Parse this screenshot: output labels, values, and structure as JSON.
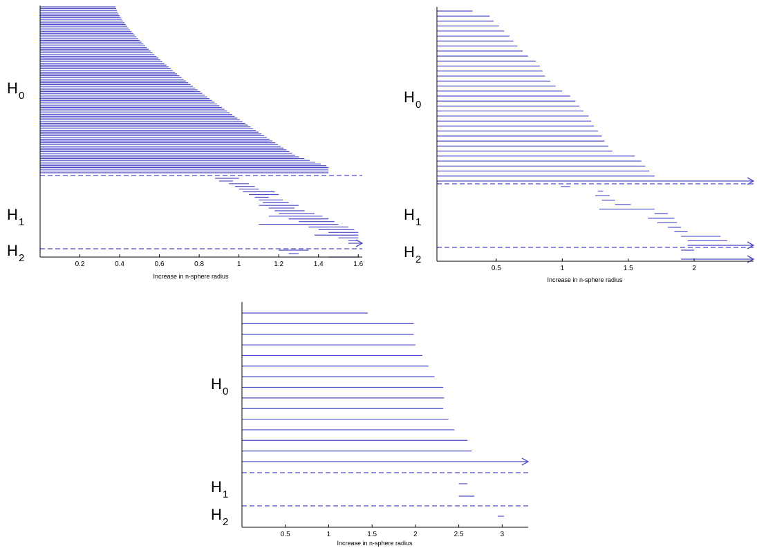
{
  "chart_data": [
    {
      "type": "barcode",
      "xlabel": "Increase in n-sphere radius",
      "xlim": [
        0,
        1.62
      ],
      "xticks": [
        "0.2",
        "0.4",
        "0.6",
        "0.8",
        "1",
        "1.2",
        "1.4",
        "1.6"
      ],
      "xtick_values": [
        0.2,
        0.4,
        0.6,
        0.8,
        1,
        1.2,
        1.4,
        1.6
      ],
      "groups": [
        {
          "label": "H",
          "sub": "0",
          "bars_generate": {
            "count": 95,
            "profile": "dense"
          }
        },
        {
          "label": "H",
          "sub": "1",
          "bars": [
            [
              0.88,
              1.0
            ],
            [
              0.9,
              0.97
            ],
            [
              0.95,
              1.05
            ],
            [
              0.98,
              1.08
            ],
            [
              1.0,
              1.1
            ],
            [
              1.02,
              1.18
            ],
            [
              1.05,
              1.2
            ],
            [
              1.08,
              1.15
            ],
            [
              1.1,
              1.22
            ],
            [
              1.12,
              1.25
            ],
            [
              1.1,
              1.3
            ],
            [
              1.15,
              1.28
            ],
            [
              1.18,
              1.33
            ],
            [
              1.2,
              1.38
            ],
            [
              1.15,
              1.42
            ],
            [
              1.25,
              1.45
            ],
            [
              1.3,
              1.48
            ],
            [
              1.1,
              1.5
            ],
            [
              1.35,
              1.55
            ],
            [
              1.4,
              1.58
            ],
            [
              1.45,
              1.6
            ],
            [
              1.38,
              1.6
            ],
            [
              1.5,
              1.6
            ],
            [
              1.55,
              1.6
            ]
          ],
          "infinite_count": 1
        },
        {
          "label": "H",
          "sub": "2",
          "bars": [
            [
              1.2,
              1.35
            ],
            [
              1.25,
              1.3
            ],
            [
              1.45,
              1.6
            ]
          ]
        }
      ]
    },
    {
      "type": "barcode",
      "xlabel": "Increase in n-sphere radius",
      "xlim": [
        0.05,
        2.45
      ],
      "xticks": [
        "0.5",
        "1",
        "1.5",
        "2"
      ],
      "xtick_values": [
        0.5,
        1,
        1.5,
        2
      ],
      "groups": [
        {
          "label": "H",
          "sub": "0",
          "bars": [
            [
              0.05,
              0.32
            ],
            [
              0.05,
              0.45
            ],
            [
              0.05,
              0.48
            ],
            [
              0.05,
              0.52
            ],
            [
              0.05,
              0.56
            ],
            [
              0.05,
              0.6
            ],
            [
              0.05,
              0.63
            ],
            [
              0.05,
              0.66
            ],
            [
              0.05,
              0.7
            ],
            [
              0.05,
              0.74
            ],
            [
              0.05,
              0.8
            ],
            [
              0.05,
              0.83
            ],
            [
              0.05,
              0.85
            ],
            [
              0.05,
              0.87
            ],
            [
              0.05,
              0.91
            ],
            [
              0.05,
              0.95
            ],
            [
              0.05,
              1.0
            ],
            [
              0.05,
              1.06
            ],
            [
              0.05,
              1.1
            ],
            [
              0.05,
              1.13
            ],
            [
              0.05,
              1.16
            ],
            [
              0.05,
              1.2
            ],
            [
              0.05,
              1.22
            ],
            [
              0.05,
              1.24
            ],
            [
              0.05,
              1.27
            ],
            [
              0.05,
              1.3
            ],
            [
              0.05,
              1.32
            ],
            [
              0.05,
              1.35
            ],
            [
              0.05,
              1.38
            ],
            [
              0.05,
              1.55
            ],
            [
              0.05,
              1.6
            ],
            [
              0.05,
              1.63
            ],
            [
              0.05,
              1.66
            ],
            [
              0.05,
              1.7
            ]
          ],
          "infinite_count": 1
        },
        {
          "label": "H",
          "sub": "1",
          "bars": [
            [
              0.99,
              1.06
            ],
            [
              1.27,
              1.31
            ],
            [
              1.25,
              1.36
            ],
            [
              1.3,
              1.4
            ],
            [
              1.4,
              1.52
            ],
            [
              1.28,
              1.7
            ],
            [
              1.7,
              1.8
            ],
            [
              1.65,
              1.85
            ],
            [
              1.72,
              1.87
            ],
            [
              1.8,
              1.9
            ],
            [
              1.85,
              1.95
            ],
            [
              1.9,
              2.2
            ],
            [
              1.95,
              2.25
            ]
          ],
          "infinite_count": 1
        },
        {
          "label": "H",
          "sub": "2",
          "bars": [
            [
              1.9,
              2.0
            ]
          ],
          "infinite_count": 1
        }
      ]
    },
    {
      "type": "barcode",
      "xlabel": "Increase in n-sphere radius",
      "xlim": [
        0,
        3.3
      ],
      "xticks": [
        "0.5",
        "1",
        "1.5",
        "2",
        "2.5",
        "3"
      ],
      "xtick_values": [
        0.5,
        1,
        1.5,
        2,
        2.5,
        3
      ],
      "groups": [
        {
          "label": "H",
          "sub": "0",
          "bars": [
            [
              0,
              1.45
            ],
            [
              0,
              1.98
            ],
            [
              0,
              1.98
            ],
            [
              0,
              2.0
            ],
            [
              0,
              2.08
            ],
            [
              0,
              2.15
            ],
            [
              0,
              2.22
            ],
            [
              0,
              2.32
            ],
            [
              0,
              2.33
            ],
            [
              0,
              2.32
            ],
            [
              0,
              2.38
            ],
            [
              0,
              2.45
            ],
            [
              0,
              2.6
            ],
            [
              0,
              2.65
            ]
          ],
          "infinite_count": 1
        },
        {
          "label": "H",
          "sub": "1",
          "bars": [
            [
              2.5,
              2.6
            ],
            [
              2.5,
              2.68
            ]
          ]
        },
        {
          "label": "H",
          "sub": "2",
          "bars": [
            [
              2.95,
              3.02
            ]
          ]
        }
      ]
    }
  ]
}
